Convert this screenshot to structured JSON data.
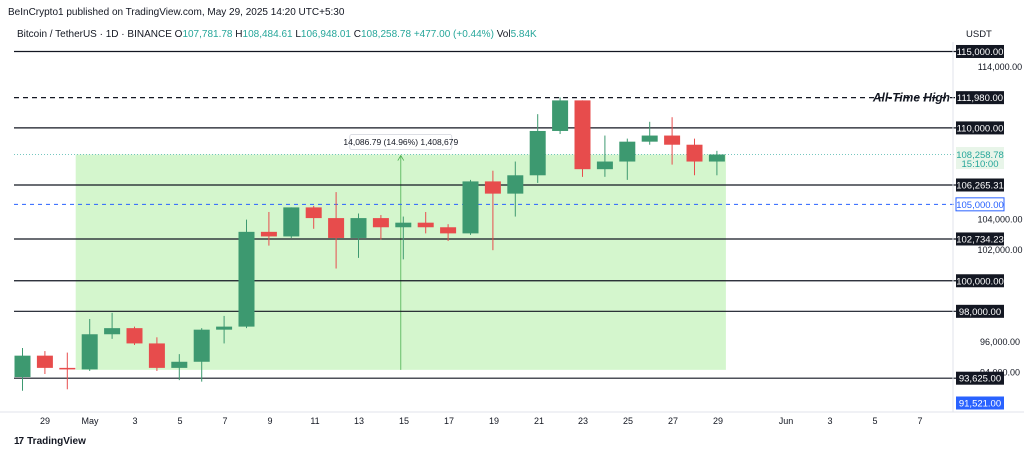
{
  "header": {
    "publisher_line": "BeInCrypto1 published on TradingView.com, May 29, 2025 14:20 UTC+5:30",
    "symbol": "Bitcoin / TetherUS · 1D · BINANCE",
    "o_label": "O",
    "o_value": "107,781.78",
    "h_label": "H",
    "h_value": "108,484.61",
    "l_label": "L",
    "l_value": "106,948.01",
    "c_label": "C",
    "c_value": "108,258.78",
    "change": "+477.00 (+0.44%)",
    "vol_label": "Vol",
    "vol_value": "5.84K",
    "currency": "USDT"
  },
  "footer": {
    "brand": "TradingView",
    "logo_mark": "17"
  },
  "chart_data": {
    "type": "candlestick",
    "x_ticks": [
      "29",
      "May",
      "3",
      "5",
      "7",
      "9",
      "11",
      "13",
      "15",
      "17",
      "19",
      "21",
      "23",
      "25",
      "27",
      "29",
      "Jun",
      "3",
      "5",
      "7"
    ],
    "y_ticks": [
      "114,000.00",
      "104,000.00",
      "102,000.00",
      "96,000.00",
      "94,000.00"
    ],
    "levels": [
      {
        "value": 115000,
        "label": "115,000.00",
        "style": "solid"
      },
      {
        "value": 111980,
        "label": "111,980.00",
        "style": "dashed",
        "note": "All-Time High"
      },
      {
        "value": 110000,
        "label": "110,000.00",
        "style": "solid"
      },
      {
        "value": 106265.31,
        "label": "106,265.31",
        "style": "solid"
      },
      {
        "value": 105000,
        "label": "105,000.00",
        "style": "dashed-blue"
      },
      {
        "value": 102734.23,
        "label": "102,734.23",
        "style": "solid"
      },
      {
        "value": 100000,
        "label": "100,000.00",
        "style": "solid"
      },
      {
        "value": 98000,
        "label": "98,000.00",
        "style": "solid"
      },
      {
        "value": 93625,
        "label": "93,625.00",
        "style": "solid"
      }
    ],
    "last_price": {
      "value": 108258.78,
      "label": "108,258.78",
      "countdown": "15:10:00"
    },
    "low_marker": {
      "value": 91521,
      "label": "91,521.00"
    },
    "measure": {
      "text": "14,086.79 (14.96%) 1,408,679",
      "from_price": 94172,
      "to_price": 108258.78,
      "from_day": 1,
      "to_day": 29
    },
    "colors": {
      "up": "#26a69a",
      "down": "#ef5350",
      "up_body": "#3d9970",
      "measure_fill": "#ccf5c4",
      "blue_line": "#2962ff"
    },
    "candles": [
      {
        "day": 28,
        "o": 93700,
        "h": 95600,
        "l": 92800,
        "c": 95100
      },
      {
        "day": 29,
        "o": 95100,
        "h": 95400,
        "l": 93900,
        "c": 94300
      },
      {
        "day": 30,
        "o": 94300,
        "h": 95300,
        "l": 92900,
        "c": 94200
      },
      {
        "day": 1,
        "o": 94200,
        "h": 97500,
        "l": 94100,
        "c": 96500
      },
      {
        "day": 2,
        "o": 96500,
        "h": 97900,
        "l": 96200,
        "c": 96900
      },
      {
        "day": 3,
        "o": 96900,
        "h": 97000,
        "l": 95800,
        "c": 95900
      },
      {
        "day": 4,
        "o": 95900,
        "h": 96300,
        "l": 94100,
        "c": 94300
      },
      {
        "day": 5,
        "o": 94300,
        "h": 95200,
        "l": 93500,
        "c": 94700
      },
      {
        "day": 6,
        "o": 94700,
        "h": 96900,
        "l": 93400,
        "c": 96800
      },
      {
        "day": 7,
        "o": 96800,
        "h": 97700,
        "l": 95900,
        "c": 97000
      },
      {
        "day": 8,
        "o": 97000,
        "h": 104000,
        "l": 96900,
        "c": 103200
      },
      {
        "day": 9,
        "o": 103200,
        "h": 104500,
        "l": 102300,
        "c": 102900
      },
      {
        "day": 10,
        "o": 102900,
        "h": 104800,
        "l": 102800,
        "c": 104800
      },
      {
        "day": 11,
        "o": 104800,
        "h": 104900,
        "l": 103400,
        "c": 104100
      },
      {
        "day": 12,
        "o": 104100,
        "h": 105800,
        "l": 100800,
        "c": 102800
      },
      {
        "day": 13,
        "o": 102800,
        "h": 104400,
        "l": 101500,
        "c": 104100
      },
      {
        "day": 14,
        "o": 104100,
        "h": 104300,
        "l": 102700,
        "c": 103500
      },
      {
        "day": 15,
        "o": 103500,
        "h": 104200,
        "l": 101400,
        "c": 103800
      },
      {
        "day": 16,
        "o": 103800,
        "h": 104500,
        "l": 103100,
        "c": 103500
      },
      {
        "day": 17,
        "o": 103500,
        "h": 103700,
        "l": 102600,
        "c": 103100
      },
      {
        "day": 18,
        "o": 103100,
        "h": 106600,
        "l": 103000,
        "c": 106500
      },
      {
        "day": 19,
        "o": 106500,
        "h": 107200,
        "l": 102000,
        "c": 105700
      },
      {
        "day": 20,
        "o": 105700,
        "h": 107800,
        "l": 104200,
        "c": 106900
      },
      {
        "day": 21,
        "o": 106900,
        "h": 110900,
        "l": 106400,
        "c": 109800
      },
      {
        "day": 22,
        "o": 109800,
        "h": 112000,
        "l": 109600,
        "c": 111800
      },
      {
        "day": 23,
        "o": 111800,
        "h": 111800,
        "l": 106800,
        "c": 107300
      },
      {
        "day": 24,
        "o": 107300,
        "h": 109500,
        "l": 106800,
        "c": 107800
      },
      {
        "day": 25,
        "o": 107800,
        "h": 109300,
        "l": 106600,
        "c": 109100
      },
      {
        "day": 26,
        "o": 109100,
        "h": 110400,
        "l": 108900,
        "c": 109500
      },
      {
        "day": 27,
        "o": 109500,
        "h": 110700,
        "l": 107600,
        "c": 108900
      },
      {
        "day": 28,
        "o": 108900,
        "h": 109300,
        "l": 106900,
        "c": 107800
      },
      {
        "day": 29,
        "o": 107800,
        "h": 108500,
        "l": 106900,
        "c": 108260
      }
    ]
  }
}
